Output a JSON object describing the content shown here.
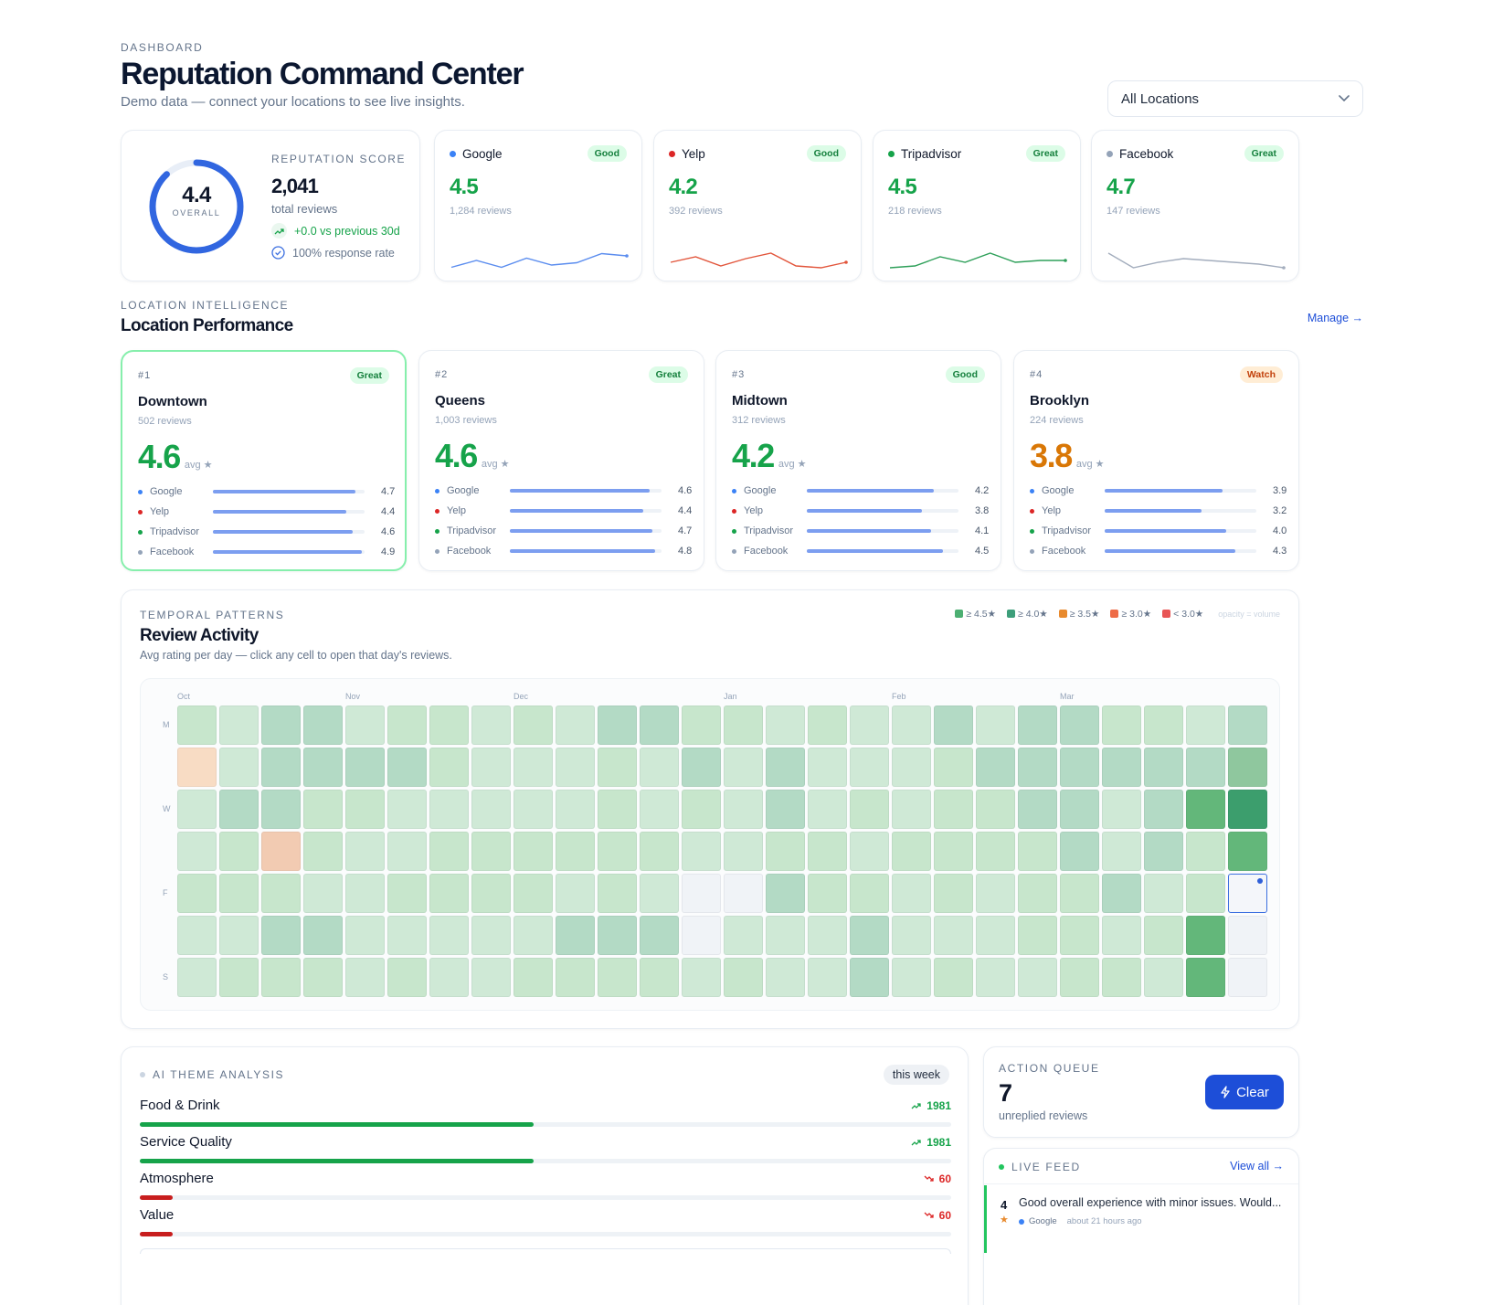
{
  "header": {
    "eyebrow": "DASHBOARD",
    "title": "Reputation Command Center",
    "subtitle": "Demo data — connect your locations to see live insights."
  },
  "location_select": {
    "value": "All Locations"
  },
  "score": {
    "value": "4.4",
    "value_label": "OVERALL",
    "ring_fraction": 0.88,
    "label": "REPUTATION SCORE",
    "total": "2,041",
    "total_label": "total reviews",
    "trend": "+0.0 vs previous 30d",
    "response": "100% response rate"
  },
  "sources": [
    {
      "name": "Google",
      "badge": "Good",
      "badge_class": "good",
      "rating": "4.5",
      "count": "1,284 reviews",
      "dot": "#3b82f6",
      "line": "#5b8def",
      "trend": [
        4.3,
        4.45,
        4.3,
        4.5,
        4.35,
        4.4,
        4.6,
        4.55
      ]
    },
    {
      "name": "Yelp",
      "badge": "Good",
      "badge_class": "good",
      "rating": "4.2",
      "count": "392 reviews",
      "dot": "#dc2626",
      "line": "#e2553b",
      "trend": [
        4.2,
        4.35,
        4.1,
        4.3,
        4.45,
        4.1,
        4.05,
        4.2
      ]
    },
    {
      "name": "Tripadvisor",
      "badge": "Great",
      "badge_class": "great",
      "rating": "4.5",
      "count": "218 reviews",
      "dot": "#16a34a",
      "line": "#2fa05a",
      "trend": [
        4.2,
        4.25,
        4.5,
        4.35,
        4.6,
        4.35,
        4.4,
        4.4
      ]
    },
    {
      "name": "Facebook",
      "badge": "Great",
      "badge_class": "great",
      "rating": "4.7",
      "count": "147 reviews",
      "dot": "#94a3b8",
      "line": "#a3adbd",
      "trend": [
        4.95,
        4.55,
        4.7,
        4.8,
        4.75,
        4.7,
        4.65,
        4.55
      ]
    }
  ],
  "location_section": {
    "eyebrow": "LOCATION INTELLIGENCE",
    "title": "Location Performance",
    "manage": "Manage →"
  },
  "locations": [
    {
      "rank": "#1",
      "name": "Downtown",
      "reviews": "502 reviews",
      "avg": "4.6",
      "avg_label": "avg ★",
      "badge": "Great",
      "badge_class": "great",
      "color": "#16a34a",
      "highlight": true,
      "sources": [
        {
          "name": "Google",
          "value": 4.7
        },
        {
          "name": "Yelp",
          "value": 4.4
        },
        {
          "name": "Tripadvisor",
          "value": 4.6
        },
        {
          "name": "Facebook",
          "value": 4.9
        }
      ]
    },
    {
      "rank": "#2",
      "name": "Queens",
      "reviews": "1,003 reviews",
      "avg": "4.6",
      "avg_label": "avg ★",
      "badge": "Great",
      "badge_class": "great",
      "color": "#16a34a",
      "highlight": false,
      "sources": [
        {
          "name": "Google",
          "value": 4.6
        },
        {
          "name": "Yelp",
          "value": 4.4
        },
        {
          "name": "Tripadvisor",
          "value": 4.7
        },
        {
          "name": "Facebook",
          "value": 4.8
        }
      ]
    },
    {
      "rank": "#3",
      "name": "Midtown",
      "reviews": "312 reviews",
      "avg": "4.2",
      "avg_label": "avg ★",
      "badge": "Good",
      "badge_class": "good",
      "color": "#16a34a",
      "highlight": false,
      "sources": [
        {
          "name": "Google",
          "value": 4.2
        },
        {
          "name": "Yelp",
          "value": 3.8
        },
        {
          "name": "Tripadvisor",
          "value": 4.1
        },
        {
          "name": "Facebook",
          "value": 4.5
        }
      ]
    },
    {
      "rank": "#4",
      "name": "Brooklyn",
      "reviews": "224 reviews",
      "avg": "3.8",
      "avg_label": "avg ★",
      "badge": "Watch",
      "badge_class": "watch",
      "color": "#d97706",
      "highlight": false,
      "sources": [
        {
          "name": "Google",
          "value": 3.9
        },
        {
          "name": "Yelp",
          "value": 3.2
        },
        {
          "name": "Tripadvisor",
          "value": 4.0
        },
        {
          "name": "Facebook",
          "value": 4.3
        }
      ]
    }
  ],
  "source_dots": {
    "Google": "#3b82f6",
    "Yelp": "#dc2626",
    "Tripadvisor": "#16a34a",
    "Facebook": "#94a3b8"
  },
  "activity": {
    "eyebrow": "TEMPORAL PATTERNS",
    "title": "Review Activity",
    "subtitle": "Avg rating per day — click any cell to open that day's reviews.",
    "legend": [
      {
        "label": "≥ 4.5★",
        "color": "#4caf72"
      },
      {
        "label": "≥ 4.0★",
        "color": "#3d9e7a"
      },
      {
        "label": "≥ 3.5★",
        "color": "#e88a2e"
      },
      {
        "label": "≥ 3.0★",
        "color": "#ee6c47"
      },
      {
        "label": "< 3.0★",
        "color": "#e85555"
      }
    ],
    "legend_note": "opacity = volume",
    "months": [
      {
        "label": "Oct",
        "col": 0
      },
      {
        "label": "Nov",
        "col": 4
      },
      {
        "label": "Dec",
        "col": 8
      },
      {
        "label": "Jan",
        "col": 13
      },
      {
        "label": "Feb",
        "col": 17
      },
      {
        "label": "Mar",
        "col": 21
      }
    ],
    "day_labels": [
      {
        "label": "M",
        "row": 0
      },
      {
        "label": "W",
        "row": 2
      },
      {
        "label": "F",
        "row": 4
      },
      {
        "label": "S",
        "row": 6
      }
    ],
    "grid": [
      "bcddcbbcbcddbbcbccdcddbbcd",
      "ocddddbcccbcdcdcccbddddddf",
      "cddbbcccccbcbcdcbcbbddcdgh",
      "cbrbccbbbbbbccbbcbbbbdcdbg",
      "bbbccbbbbcbceedbbcbcbbdcbs",
      "ccddcccccdddecccdcccbbcbge",
      "cbbbcbccbbbbcbccdcbccbbcge"
    ]
  },
  "themes": {
    "eyebrow": "AI THEME ANALYSIS",
    "period": "this week",
    "items": [
      {
        "name": "Food & Drink",
        "value": "1981",
        "trend": "up",
        "fraction": 0.485
      },
      {
        "name": "Service Quality",
        "value": "1981",
        "trend": "up",
        "fraction": 0.485
      },
      {
        "name": "Atmosphere",
        "value": "60",
        "trend": "down",
        "fraction": 0.04
      },
      {
        "name": "Value",
        "value": "60",
        "trend": "down",
        "fraction": 0.04
      }
    ]
  },
  "action_queue": {
    "eyebrow": "ACTION QUEUE",
    "count": "7",
    "label": "unreplied reviews",
    "button": "Clear"
  },
  "live_feed": {
    "eyebrow": "LIVE FEED",
    "view_all": "View all →",
    "items": [
      {
        "rating": "4",
        "text": "Good overall experience with minor issues. Would...",
        "source": "Google",
        "time": "about 21 hours ago"
      }
    ]
  }
}
